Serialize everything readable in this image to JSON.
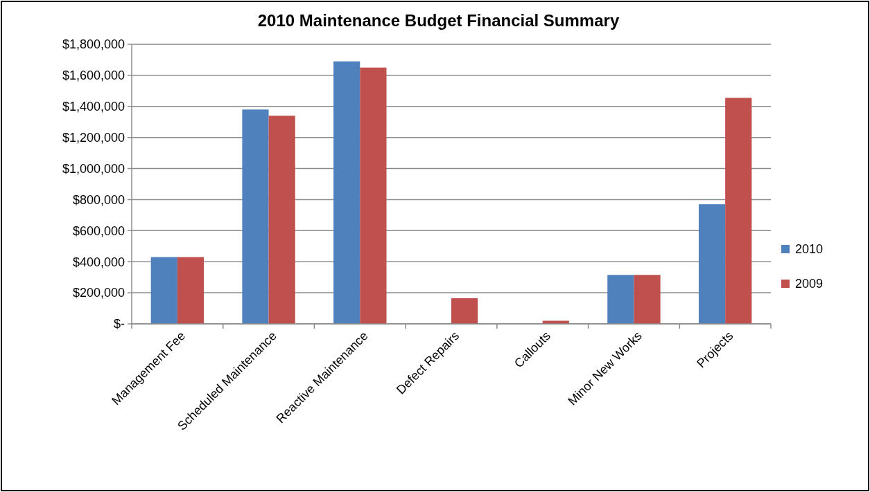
{
  "chart_data": {
    "type": "bar",
    "title": "2010 Maintenance Budget Financial Summary",
    "categories": [
      "Management Fee",
      "Scheduled Maintenance",
      "Reactive Maintenance",
      "Defect Repairs",
      "Callouts",
      "Minor New Works",
      "Projects"
    ],
    "series": [
      {
        "name": "2010",
        "color": "#4f81bd",
        "values": [
          430000,
          1380000,
          1690000,
          0,
          0,
          315000,
          770000
        ]
      },
      {
        "name": "2009",
        "color": "#c0504d",
        "values": [
          430000,
          1340000,
          1650000,
          165000,
          20000,
          315000,
          1455000
        ]
      }
    ],
    "ylim": [
      0,
      1800000
    ],
    "yticks": [
      {
        "value": 0,
        "label": "$-"
      },
      {
        "value": 200000,
        "label": "$200,000"
      },
      {
        "value": 400000,
        "label": "$400,000"
      },
      {
        "value": 600000,
        "label": "$600,000"
      },
      {
        "value": 800000,
        "label": "$800,000"
      },
      {
        "value": 1000000,
        "label": "$1,000,000"
      },
      {
        "value": 1200000,
        "label": "$1,200,000"
      },
      {
        "value": 1400000,
        "label": "$1,400,000"
      },
      {
        "value": 1600000,
        "label": "$1,600,000"
      },
      {
        "value": 1800000,
        "label": "$1,800,000"
      }
    ],
    "grid": "y",
    "legend": "right"
  }
}
